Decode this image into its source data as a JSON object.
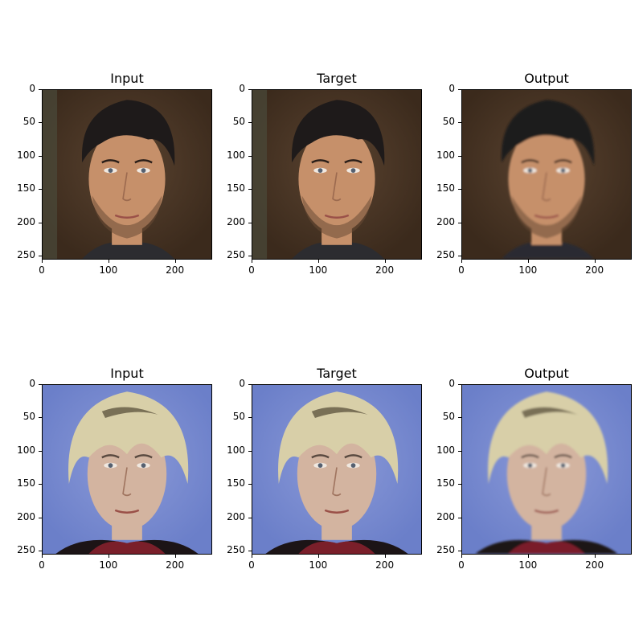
{
  "panels": [
    {
      "title": "Input",
      "scheme": "dark-hair-brown-bg"
    },
    {
      "title": "Target",
      "scheme": "dark-hair-brown-bg"
    },
    {
      "title": "Output",
      "scheme": "dark-hair-brown-bg-smooth"
    },
    {
      "title": "Input",
      "scheme": "blond-hair-blue-bg"
    },
    {
      "title": "Target",
      "scheme": "blond-hair-blue-bg"
    },
    {
      "title": "Output",
      "scheme": "blond-hair-blue-bg-smooth"
    }
  ],
  "axis": {
    "y_ticks": [
      "0",
      "50",
      "100",
      "150",
      "200",
      "250"
    ],
    "x_ticks": [
      "0",
      "100",
      "200"
    ]
  },
  "colors": {
    "brown_bg": "#3b2a1c",
    "dark_hair": "#1e1a1a",
    "skin_tan": "#c6906a",
    "blue_bg": "#6b7fc9",
    "blond_hair": "#d8cfa8",
    "skin_light": "#d3b4a0",
    "jacket": "#1c1416",
    "shirt_red": "#7a1f2a"
  }
}
